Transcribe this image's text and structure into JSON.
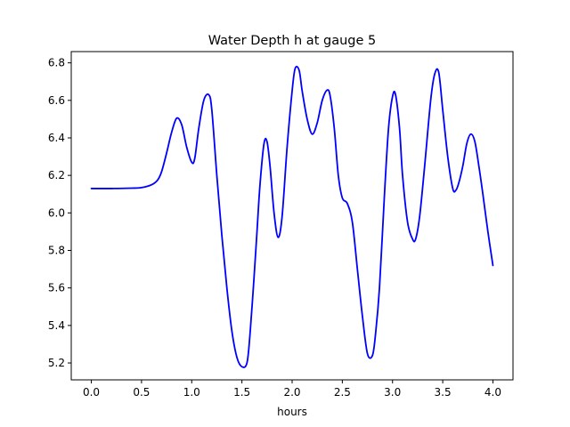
{
  "chart_data": {
    "type": "line",
    "title": "Water Depth h at gauge 5",
    "xlabel": "hours",
    "ylabel": "",
    "xlim": [
      -0.2,
      4.2
    ],
    "ylim": [
      5.11,
      6.86
    ],
    "xticks": [
      0.0,
      0.5,
      1.0,
      1.5,
      2.0,
      2.5,
      3.0,
      3.5,
      4.0
    ],
    "xtick_labels": [
      "0.0",
      "0.5",
      "1.0",
      "1.5",
      "2.0",
      "2.5",
      "3.0",
      "3.5",
      "4.0"
    ],
    "yticks": [
      5.2,
      5.4,
      5.6,
      5.8,
      6.0,
      6.2,
      6.4,
      6.6,
      6.8
    ],
    "ytick_labels": [
      "5.2",
      "5.4",
      "5.6",
      "5.8",
      "6.0",
      "6.2",
      "6.4",
      "6.6",
      "6.8"
    ],
    "grid": false,
    "series": [
      {
        "color": "#0000ff",
        "x": [
          0.0,
          0.2,
          0.4,
          0.5,
          0.6,
          0.66,
          0.7,
          0.75,
          0.8,
          0.85,
          0.9,
          0.95,
          1.0,
          1.03,
          1.07,
          1.12,
          1.17,
          1.2,
          1.25,
          1.3,
          1.35,
          1.4,
          1.45,
          1.5,
          1.55,
          1.58,
          1.62,
          1.65,
          1.68,
          1.72,
          1.75,
          1.78,
          1.82,
          1.86,
          1.9,
          1.95,
          2.0,
          2.03,
          2.07,
          2.1,
          2.15,
          2.2,
          2.25,
          2.3,
          2.35,
          2.38,
          2.42,
          2.46,
          2.5,
          2.55,
          2.6,
          2.65,
          2.7,
          2.75,
          2.8,
          2.83,
          2.87,
          2.92,
          2.96,
          3.0,
          3.03,
          3.07,
          3.1,
          3.15,
          3.2,
          3.23,
          3.27,
          3.32,
          3.38,
          3.42,
          3.46,
          3.5,
          3.55,
          3.6,
          3.63,
          3.66,
          3.7,
          3.74,
          3.78,
          3.82,
          3.86,
          3.9,
          3.95,
          4.0
        ],
        "y": [
          6.13,
          6.13,
          6.132,
          6.135,
          6.15,
          6.175,
          6.22,
          6.32,
          6.43,
          6.505,
          6.47,
          6.35,
          6.27,
          6.29,
          6.45,
          6.6,
          6.63,
          6.55,
          6.2,
          5.88,
          5.6,
          5.37,
          5.23,
          5.18,
          5.2,
          5.35,
          5.65,
          5.9,
          6.15,
          6.37,
          6.38,
          6.25,
          6.0,
          5.87,
          5.98,
          6.35,
          6.65,
          6.77,
          6.76,
          6.65,
          6.5,
          6.42,
          6.48,
          6.6,
          6.655,
          6.62,
          6.45,
          6.2,
          6.08,
          6.05,
          5.95,
          5.7,
          5.45,
          5.25,
          5.24,
          5.35,
          5.6,
          6.1,
          6.45,
          6.62,
          6.63,
          6.45,
          6.2,
          5.95,
          5.86,
          5.86,
          5.98,
          6.25,
          6.6,
          6.74,
          6.75,
          6.55,
          6.3,
          6.13,
          6.12,
          6.16,
          6.25,
          6.37,
          6.42,
          6.38,
          6.25,
          6.1,
          5.9,
          5.72
        ]
      }
    ]
  }
}
